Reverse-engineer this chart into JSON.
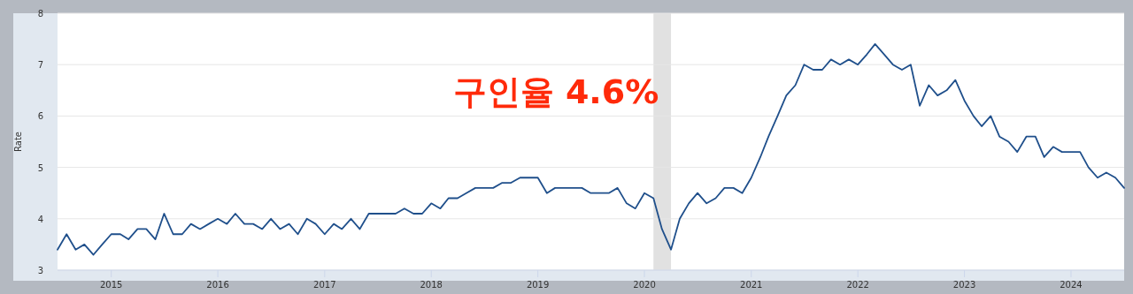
{
  "chart_data": {
    "type": "line",
    "ylabel": "Rate",
    "x": [
      "2014-07",
      "2014-08",
      "2014-09",
      "2014-10",
      "2014-11",
      "2014-12",
      "2015-01",
      "2015-02",
      "2015-03",
      "2015-04",
      "2015-05",
      "2015-06",
      "2015-07",
      "2015-08",
      "2015-09",
      "2015-10",
      "2015-11",
      "2015-12",
      "2016-01",
      "2016-02",
      "2016-03",
      "2016-04",
      "2016-05",
      "2016-06",
      "2016-07",
      "2016-08",
      "2016-09",
      "2016-10",
      "2016-11",
      "2016-12",
      "2017-01",
      "2017-02",
      "2017-03",
      "2017-04",
      "2017-05",
      "2017-06",
      "2017-07",
      "2017-08",
      "2017-09",
      "2017-10",
      "2017-11",
      "2017-12",
      "2018-01",
      "2018-02",
      "2018-03",
      "2018-04",
      "2018-05",
      "2018-06",
      "2018-07",
      "2018-08",
      "2018-09",
      "2018-10",
      "2018-11",
      "2018-12",
      "2019-01",
      "2019-02",
      "2019-03",
      "2019-04",
      "2019-05",
      "2019-06",
      "2019-07",
      "2019-08",
      "2019-09",
      "2019-10",
      "2019-11",
      "2019-12",
      "2020-01",
      "2020-02",
      "2020-03",
      "2020-04",
      "2020-05",
      "2020-06",
      "2020-07",
      "2020-08",
      "2020-09",
      "2020-10",
      "2020-11",
      "2020-12",
      "2021-01",
      "2021-02",
      "2021-03",
      "2021-04",
      "2021-05",
      "2021-06",
      "2021-07",
      "2021-08",
      "2021-09",
      "2021-10",
      "2021-11",
      "2021-12",
      "2022-01",
      "2022-02",
      "2022-03",
      "2022-04",
      "2022-05",
      "2022-06",
      "2022-07",
      "2022-08",
      "2022-09",
      "2022-10",
      "2022-11",
      "2022-12",
      "2023-01",
      "2023-02",
      "2023-03",
      "2023-04",
      "2023-05",
      "2023-06",
      "2023-07",
      "2023-08",
      "2023-09",
      "2023-10",
      "2023-11",
      "2023-12",
      "2024-01",
      "2024-02",
      "2024-03",
      "2024-04",
      "2024-05",
      "2024-06",
      "2024-07"
    ],
    "series": [
      {
        "color": "#1f4f8b",
        "values": [
          3.4,
          3.7,
          3.4,
          3.5,
          3.3,
          3.5,
          3.7,
          3.7,
          3.6,
          3.8,
          3.8,
          3.6,
          4.1,
          3.7,
          3.7,
          3.9,
          3.8,
          3.9,
          4.0,
          3.9,
          4.1,
          3.9,
          3.9,
          3.8,
          4.0,
          3.8,
          3.9,
          3.7,
          4.0,
          3.9,
          3.7,
          3.9,
          3.8,
          4.0,
          3.8,
          4.1,
          4.1,
          4.1,
          4.1,
          4.2,
          4.1,
          4.1,
          4.3,
          4.2,
          4.4,
          4.4,
          4.5,
          4.6,
          4.6,
          4.6,
          4.7,
          4.7,
          4.8,
          4.8,
          4.8,
          4.5,
          4.6,
          4.6,
          4.6,
          4.6,
          4.5,
          4.5,
          4.5,
          4.6,
          4.3,
          4.2,
          4.5,
          4.4,
          3.8,
          3.4,
          4.0,
          4.3,
          4.5,
          4.3,
          4.4,
          4.6,
          4.6,
          4.5,
          4.8,
          5.2,
          5.6,
          6.0,
          6.4,
          6.6,
          7.0,
          6.9,
          6.9,
          7.1,
          7.0,
          7.1,
          7.0,
          7.2,
          7.4,
          7.2,
          7.0,
          6.9,
          7.0,
          6.2,
          6.6,
          6.4,
          6.5,
          6.7,
          6.3,
          6.0,
          5.8,
          6.0,
          5.6,
          5.5,
          5.3,
          5.6,
          5.6,
          5.2,
          5.4,
          5.3,
          5.3,
          5.3,
          5.0,
          4.8,
          4.9,
          4.8,
          4.6
        ]
      }
    ],
    "xlim": [
      "2014-07",
      "2024-07"
    ],
    "xticks": [
      "2015",
      "2016",
      "2017",
      "2018",
      "2019",
      "2020",
      "2021",
      "2022",
      "2023",
      "2024"
    ],
    "ylim": [
      3,
      8
    ],
    "yticks": [
      3,
      4,
      5,
      6,
      7,
      8
    ],
    "grid": "y",
    "line_style": "solid",
    "marker": "none",
    "bands": [
      {
        "axis": "x",
        "from": "2020-02",
        "to": "2020-04",
        "color": "#e1e1e1"
      }
    ],
    "annotations": [
      "구인율 4.6%"
    ]
  }
}
